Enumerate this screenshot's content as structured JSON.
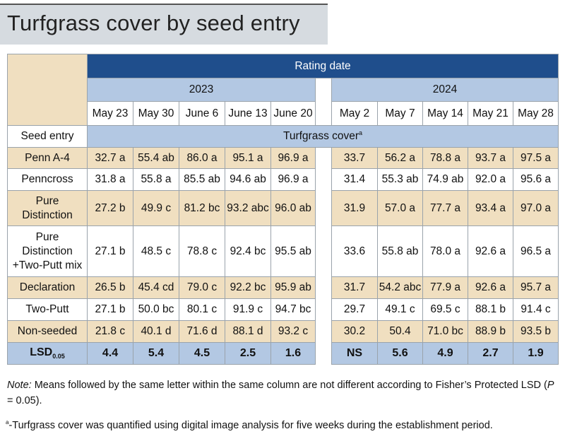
{
  "title": "Turfgrass cover by seed entry",
  "rating_date_label": "Rating date",
  "years": [
    "2023",
    "2024"
  ],
  "dates_2023": [
    "May 23",
    "May 30",
    "June 6",
    "June 13",
    "June 20"
  ],
  "dates_2024": [
    "May 2",
    "May 7",
    "May 14",
    "May 21",
    "May 28"
  ],
  "seed_entry_label": "Seed entry",
  "cover_label": "Turfgrass cover",
  "cover_sup": "a",
  "rows": [
    {
      "label": "Penn A-4",
      "y2023": [
        "32.7 a",
        "55.4 ab",
        "86.0 a",
        "95.1 a",
        "96.9 a"
      ],
      "y2024": [
        "33.7",
        "56.2 a",
        "78.8 a",
        "93.7 a",
        "97.5 a"
      ]
    },
    {
      "label": "Penncross",
      "y2023": [
        "31.8 a",
        "55.8 a",
        "85.5 ab",
        "94.6 ab",
        "96.9 a"
      ],
      "y2024": [
        "31.4",
        "55.3 ab",
        "74.9 ab",
        "92.0 a",
        "95.6 a"
      ]
    },
    {
      "label": "Pure\nDistinction",
      "y2023": [
        "27.2 b",
        "49.9 c",
        "81.2 bc",
        "93.2 abc",
        "96.0 ab"
      ],
      "y2024": [
        "31.9",
        "57.0 a",
        "77.7 a",
        "93.4 a",
        "97.0 a"
      ]
    },
    {
      "label": "Pure\nDistinction\n+Two-Putt mix",
      "y2023": [
        "27.1 b",
        "48.5 c",
        "78.8 c",
        "92.4 bc",
        "95.5 ab"
      ],
      "y2024": [
        "33.6",
        "55.8 ab",
        "78.0 a",
        "92.6 a",
        "96.5 a"
      ]
    },
    {
      "label": "Declaration",
      "y2023": [
        "26.5 b",
        "45.4 cd",
        "79.0 c",
        "92.2 bc",
        "95.9 ab"
      ],
      "y2024": [
        "31.7",
        "54.2 abc",
        "77.9 a",
        "92.6 a",
        "95.7 a"
      ]
    },
    {
      "label": "Two-Putt",
      "y2023": [
        "27.1 b",
        "50.0 bc",
        "80.1 c",
        "91.9 c",
        "94.7 bc"
      ],
      "y2024": [
        "29.7",
        "49.1 c",
        "69.5 c",
        "88.1 b",
        "91.4 c"
      ]
    },
    {
      "label": "Non-seeded",
      "y2023": [
        "21.8 c",
        "40.1 d",
        "71.6 d",
        "88.1 d",
        "93.2 c"
      ],
      "y2024": [
        "30.2",
        "50.4",
        "71.0 bc",
        "88.9 b",
        "93.5 b"
      ]
    }
  ],
  "lsd": {
    "label": "LSD",
    "sub": "0.05",
    "y2023": [
      "4.4",
      "5.4",
      "4.5",
      "2.5",
      "1.6"
    ],
    "y2024": [
      "NS",
      "5.6",
      "4.9",
      "2.7",
      "1.9"
    ]
  },
  "note": {
    "prefix": "Note:",
    "text_before_p": " Means followed by the same letter within the same column are not different according to Fisher’s Protected LSD (",
    "p": "P",
    "text_after_p": " = 0.05)."
  },
  "footnote": {
    "sup": "a",
    "text": "-Turfgrass cover was quantified using digital image analysis for five weeks during the establishment period."
  }
}
